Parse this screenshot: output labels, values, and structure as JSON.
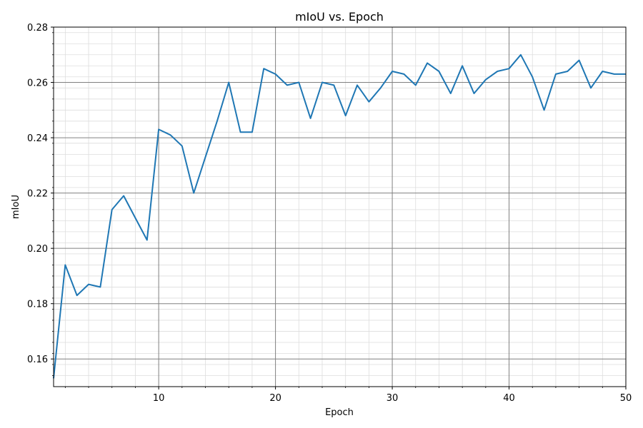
{
  "chart_data": {
    "type": "line",
    "title": "mIoU vs. Epoch",
    "xlabel": "Epoch",
    "ylabel": "mIoU",
    "xlim": [
      1,
      50
    ],
    "ylim": [
      0.15,
      0.28
    ],
    "x_ticks": [
      10,
      20,
      30,
      40,
      50
    ],
    "x_tick_labels": [
      "10",
      "20",
      "30",
      "40",
      "50"
    ],
    "y_ticks": [
      0.16,
      0.18,
      0.2,
      0.22,
      0.24,
      0.26,
      0.28
    ],
    "y_tick_labels": [
      "0.16",
      "0.18",
      "0.20",
      "0.22",
      "0.24",
      "0.26",
      "0.28"
    ],
    "grid": "major and minor",
    "series": [
      {
        "color": "#1f77b4",
        "x": [
          1,
          2,
          3,
          4,
          5,
          6,
          7,
          8,
          9,
          10,
          11,
          12,
          13,
          14,
          15,
          16,
          17,
          18,
          19,
          20,
          21,
          22,
          23,
          24,
          25,
          26,
          27,
          28,
          29,
          30,
          31,
          32,
          33,
          34,
          35,
          36,
          37,
          38,
          39,
          40,
          41,
          42,
          43,
          44,
          45,
          46,
          47,
          48,
          49,
          50
        ],
        "values": [
          0.153,
          0.194,
          0.183,
          0.187,
          0.186,
          0.214,
          0.219,
          0.211,
          0.203,
          0.243,
          0.241,
          0.237,
          0.22,
          0.233,
          0.246,
          0.26,
          0.242,
          0.242,
          0.265,
          0.263,
          0.259,
          0.26,
          0.247,
          0.26,
          0.259,
          0.248,
          0.259,
          0.253,
          0.258,
          0.264,
          0.263,
          0.259,
          0.267,
          0.264,
          0.256,
          0.266,
          0.256,
          0.261,
          0.264,
          0.265,
          0.27,
          0.262,
          0.25,
          0.263,
          0.264,
          0.268,
          0.258,
          0.264,
          0.263,
          0.263
        ]
      }
    ]
  }
}
